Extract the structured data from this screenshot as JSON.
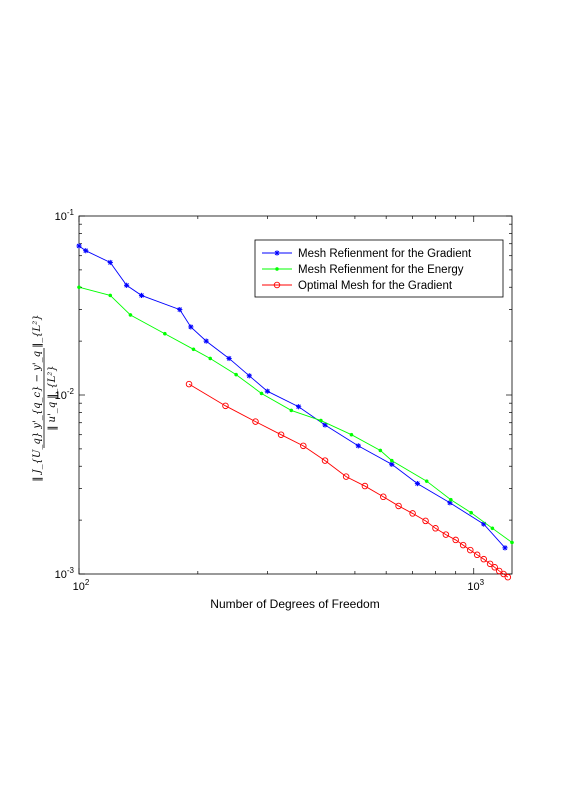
{
  "chart_data": {
    "type": "line",
    "xscale": "log",
    "yscale": "log",
    "xlim": [
      100,
      1250
    ],
    "ylim": [
      0.001,
      0.1
    ],
    "xlabel": "Number of Degrees of Freedom",
    "ylabel_numerator": "‖ J_{U_q} y'_{q_c} − y'_q ‖_{L²}",
    "ylabel_denominator": "‖ u'_q ‖_{L²}",
    "grid": false,
    "legend_position": "top-right",
    "x_ticks": [
      {
        "value": 100,
        "base": "10",
        "exp": "2"
      },
      {
        "value": 1000,
        "base": "10",
        "exp": "3"
      }
    ],
    "y_ticks": [
      {
        "value": 0.001,
        "base": "10",
        "exp": "-3"
      },
      {
        "value": 0.01,
        "base": "10",
        "exp": "-2"
      },
      {
        "value": 0.1,
        "base": "10",
        "exp": "-1"
      }
    ],
    "series": [
      {
        "name": "Mesh Refienment for the Gradient",
        "color": "#0000ff",
        "marker": "star",
        "x": [
          100,
          104,
          120,
          132,
          144,
          180,
          192,
          210,
          240,
          270,
          300,
          360,
          420,
          510,
          620,
          720,
          870,
          1060,
          1200
        ],
        "y": [
          0.068,
          0.064,
          0.055,
          0.041,
          0.036,
          0.03,
          0.024,
          0.02,
          0.016,
          0.0128,
          0.0105,
          0.0086,
          0.0068,
          0.0052,
          0.0041,
          0.0032,
          0.0025,
          0.0019,
          0.0014
        ]
      },
      {
        "name": "Mesh Refienment for the Energy",
        "color": "#00ff00",
        "marker": "dot",
        "x": [
          100,
          120,
          135,
          165,
          195,
          215,
          250,
          290,
          345,
          410,
          490,
          580,
          620,
          760,
          875,
          985,
          1115,
          1250
        ],
        "y": [
          0.04,
          0.036,
          0.028,
          0.022,
          0.018,
          0.016,
          0.013,
          0.0102,
          0.0082,
          0.0072,
          0.006,
          0.0049,
          0.0043,
          0.0033,
          0.0026,
          0.0022,
          0.0018,
          0.0015
        ]
      },
      {
        "name": "Optimal Mesh for the Gradient",
        "color": "#ff0000",
        "marker": "circle",
        "x": [
          190,
          235,
          280,
          325,
          370,
          420,
          475,
          530,
          590,
          645,
          700,
          755,
          800,
          850,
          900,
          940,
          980,
          1020,
          1060,
          1100,
          1130,
          1160,
          1190,
          1220
        ],
        "y": [
          0.0115,
          0.0087,
          0.0071,
          0.006,
          0.0052,
          0.0043,
          0.0035,
          0.0031,
          0.0027,
          0.0024,
          0.00218,
          0.00198,
          0.0018,
          0.00166,
          0.00155,
          0.00145,
          0.00136,
          0.00128,
          0.00121,
          0.00114,
          0.00109,
          0.00104,
          0.001,
          0.00096
        ]
      }
    ]
  }
}
